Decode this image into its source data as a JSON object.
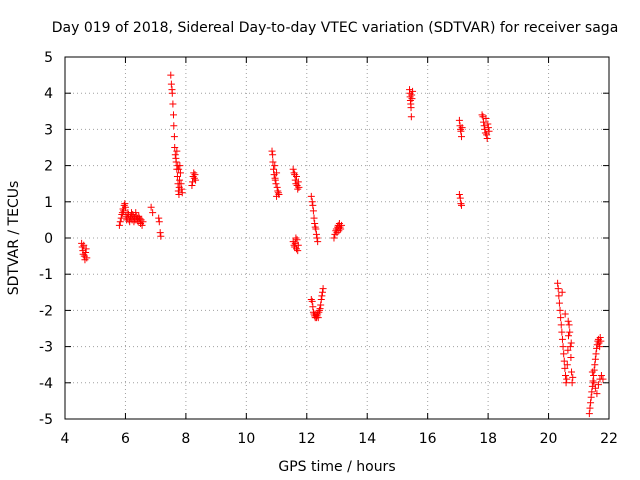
{
  "chart_data": {
    "type": "scatter",
    "title": "Day 019 of 2018, Sidereal Day-to-day VTEC variation (SDTVAR) for receiver saga",
    "xlabel": "GPS time / hours",
    "ylabel": "SDTVAR / TECUs",
    "xlim": [
      4,
      22
    ],
    "ylim": [
      -5,
      5
    ],
    "xticks": [
      4,
      6,
      8,
      10,
      12,
      14,
      16,
      18,
      20,
      22
    ],
    "yticks": [
      -5,
      -4,
      -3,
      -2,
      -1,
      0,
      1,
      2,
      3,
      4,
      5
    ],
    "grid": true,
    "marker": "+",
    "color": "#ff0000",
    "series": [
      {
        "name": "SDTVAR",
        "points": [
          [
            4.55,
            -0.15
          ],
          [
            4.57,
            -0.25
          ],
          [
            4.59,
            -0.35
          ],
          [
            4.6,
            -0.45
          ],
          [
            4.62,
            -0.2
          ],
          [
            4.64,
            -0.5
          ],
          [
            4.66,
            -0.6
          ],
          [
            4.68,
            -0.4
          ],
          [
            4.7,
            -0.3
          ],
          [
            4.72,
            -0.55
          ],
          [
            5.8,
            0.35
          ],
          [
            5.83,
            0.45
          ],
          [
            5.86,
            0.55
          ],
          [
            5.88,
            0.65
          ],
          [
            5.9,
            0.7
          ],
          [
            5.92,
            0.8
          ],
          [
            5.94,
            0.75
          ],
          [
            5.96,
            0.9
          ],
          [
            5.98,
            0.95
          ],
          [
            6.0,
            0.85
          ],
          [
            6.02,
            0.6
          ],
          [
            6.04,
            0.5
          ],
          [
            6.06,
            0.55
          ],
          [
            6.08,
            0.7
          ],
          [
            6.1,
            0.65
          ],
          [
            6.12,
            0.5
          ],
          [
            6.14,
            0.45
          ],
          [
            6.16,
            0.6
          ],
          [
            6.18,
            0.55
          ],
          [
            6.2,
            0.7
          ],
          [
            6.22,
            0.5
          ],
          [
            6.24,
            0.65
          ],
          [
            6.26,
            0.6
          ],
          [
            6.28,
            0.45
          ],
          [
            6.3,
            0.55
          ],
          [
            6.32,
            0.5
          ],
          [
            6.34,
            0.7
          ],
          [
            6.36,
            0.6
          ],
          [
            6.38,
            0.5
          ],
          [
            6.4,
            0.55
          ],
          [
            6.42,
            0.45
          ],
          [
            6.44,
            0.6
          ],
          [
            6.46,
            0.55
          ],
          [
            6.48,
            0.5
          ],
          [
            6.5,
            0.4
          ],
          [
            6.52,
            0.5
          ],
          [
            6.55,
            0.35
          ],
          [
            6.58,
            0.45
          ],
          [
            6.85,
            0.85
          ],
          [
            6.9,
            0.7
          ],
          [
            7.1,
            0.55
          ],
          [
            7.12,
            0.45
          ],
          [
            7.15,
            0.15
          ],
          [
            7.17,
            0.05
          ],
          [
            7.5,
            4.5
          ],
          [
            7.52,
            4.25
          ],
          [
            7.54,
            4.1
          ],
          [
            7.55,
            4.0
          ],
          [
            7.57,
            3.7
          ],
          [
            7.59,
            3.4
          ],
          [
            7.6,
            3.1
          ],
          [
            7.62,
            2.8
          ],
          [
            7.63,
            2.5
          ],
          [
            7.65,
            2.3
          ],
          [
            7.67,
            2.2
          ],
          [
            7.68,
            2.1
          ],
          [
            7.7,
            1.9
          ],
          [
            7.72,
            1.7
          ],
          [
            7.74,
            1.5
          ],
          [
            7.75,
            1.3
          ],
          [
            7.77,
            1.2
          ],
          [
            7.78,
            1.4
          ],
          [
            7.8,
            2.0
          ],
          [
            7.82,
            1.8
          ],
          [
            7.84,
            1.5
          ],
          [
            7.86,
            1.35
          ],
          [
            7.88,
            1.25
          ],
          [
            7.7,
            2.4
          ],
          [
            7.73,
            2.0
          ],
          [
            7.76,
            1.9
          ],
          [
            7.79,
            1.6
          ],
          [
            8.2,
            1.45
          ],
          [
            8.22,
            1.55
          ],
          [
            8.24,
            1.7
          ],
          [
            8.26,
            1.8
          ],
          [
            8.28,
            1.65
          ],
          [
            8.3,
            1.75
          ],
          [
            8.32,
            1.6
          ],
          [
            10.85,
            2.4
          ],
          [
            10.87,
            2.3
          ],
          [
            10.88,
            2.1
          ],
          [
            10.9,
            1.9
          ],
          [
            10.92,
            1.75
          ],
          [
            10.94,
            2.0
          ],
          [
            10.96,
            1.6
          ],
          [
            10.98,
            1.5
          ],
          [
            11.0,
            1.8
          ],
          [
            11.02,
            1.4
          ],
          [
            11.04,
            1.3
          ],
          [
            11.06,
            1.25
          ],
          [
            11.08,
            1.2
          ],
          [
            11.0,
            1.15
          ],
          [
            10.95,
            1.65
          ],
          [
            11.55,
            1.9
          ],
          [
            11.58,
            1.8
          ],
          [
            11.6,
            1.75
          ],
          [
            11.62,
            1.6
          ],
          [
            11.64,
            1.5
          ],
          [
            11.66,
            1.7
          ],
          [
            11.68,
            1.45
          ],
          [
            11.7,
            1.35
          ],
          [
            11.72,
            1.55
          ],
          [
            11.74,
            1.4
          ],
          [
            11.55,
            -0.1
          ],
          [
            11.58,
            -0.2
          ],
          [
            11.6,
            -0.25
          ],
          [
            11.62,
            -0.15
          ],
          [
            11.64,
            0.0
          ],
          [
            11.66,
            -0.3
          ],
          [
            11.68,
            -0.05
          ],
          [
            11.7,
            -0.35
          ],
          [
            11.72,
            -0.2
          ],
          [
            12.15,
            1.15
          ],
          [
            12.18,
            1.0
          ],
          [
            12.2,
            0.9
          ],
          [
            12.22,
            0.75
          ],
          [
            12.24,
            0.55
          ],
          [
            12.26,
            0.4
          ],
          [
            12.28,
            0.3
          ],
          [
            12.3,
            0.25
          ],
          [
            12.32,
            0.1
          ],
          [
            12.34,
            0.0
          ],
          [
            12.36,
            -0.1
          ],
          [
            12.15,
            -1.7
          ],
          [
            12.18,
            -1.75
          ],
          [
            12.2,
            -1.9
          ],
          [
            12.22,
            -2.05
          ],
          [
            12.24,
            -2.1
          ],
          [
            12.26,
            -2.15
          ],
          [
            12.28,
            -2.2
          ],
          [
            12.3,
            -2.1
          ],
          [
            12.32,
            -2.2
          ],
          [
            12.34,
            -2.15
          ],
          [
            12.36,
            -2.1
          ],
          [
            12.38,
            -2.2
          ],
          [
            12.4,
            -2.05
          ],
          [
            12.42,
            -2.0
          ],
          [
            12.44,
            -1.95
          ],
          [
            12.46,
            -1.85
          ],
          [
            12.48,
            -1.7
          ],
          [
            12.5,
            -1.6
          ],
          [
            12.52,
            -1.5
          ],
          [
            12.54,
            -1.4
          ],
          [
            12.9,
            0.0
          ],
          [
            12.93,
            0.1
          ],
          [
            12.96,
            0.2
          ],
          [
            12.98,
            0.25
          ],
          [
            13.0,
            0.15
          ],
          [
            13.02,
            0.3
          ],
          [
            13.04,
            0.35
          ],
          [
            13.06,
            0.2
          ],
          [
            13.08,
            0.4
          ],
          [
            13.1,
            0.3
          ],
          [
            13.12,
            0.25
          ],
          [
            13.15,
            0.35
          ],
          [
            15.4,
            4.1
          ],
          [
            15.41,
            4.0
          ],
          [
            15.42,
            3.9
          ],
          [
            15.43,
            3.8
          ],
          [
            15.44,
            3.7
          ],
          [
            15.45,
            3.6
          ],
          [
            15.46,
            3.35
          ],
          [
            15.47,
            3.95
          ],
          [
            15.48,
            3.85
          ],
          [
            15.5,
            4.05
          ],
          [
            17.05,
            3.25
          ],
          [
            17.07,
            3.1
          ],
          [
            17.09,
            3.0
          ],
          [
            17.1,
            2.95
          ],
          [
            17.12,
            2.8
          ],
          [
            17.14,
            3.05
          ],
          [
            17.05,
            1.2
          ],
          [
            17.08,
            1.1
          ],
          [
            17.1,
            0.95
          ],
          [
            17.12,
            0.9
          ],
          [
            17.8,
            3.4
          ],
          [
            17.83,
            3.35
          ],
          [
            17.85,
            3.2
          ],
          [
            17.87,
            3.1
          ],
          [
            17.89,
            3.0
          ],
          [
            17.91,
            2.9
          ],
          [
            17.93,
            3.3
          ],
          [
            17.95,
            2.85
          ],
          [
            17.97,
            2.75
          ],
          [
            17.99,
            3.15
          ],
          [
            18.01,
            3.05
          ],
          [
            18.03,
            2.95
          ],
          [
            20.3,
            -1.25
          ],
          [
            20.32,
            -1.4
          ],
          [
            20.34,
            -1.6
          ],
          [
            20.36,
            -1.8
          ],
          [
            20.38,
            -2.0
          ],
          [
            20.4,
            -2.2
          ],
          [
            20.42,
            -2.4
          ],
          [
            20.44,
            -2.6
          ],
          [
            20.46,
            -2.8
          ],
          [
            20.48,
            -3.0
          ],
          [
            20.5,
            -3.2
          ],
          [
            20.52,
            -3.4
          ],
          [
            20.54,
            -3.6
          ],
          [
            20.56,
            -3.8
          ],
          [
            20.58,
            -4.0
          ],
          [
            20.6,
            -3.9
          ],
          [
            20.62,
            -3.5
          ],
          [
            20.64,
            -3.1
          ],
          [
            20.66,
            -2.7
          ],
          [
            20.68,
            -2.4
          ],
          [
            20.7,
            -2.6
          ],
          [
            20.72,
            -3.0
          ],
          [
            20.74,
            -3.3
          ],
          [
            20.76,
            -3.7
          ],
          [
            20.78,
            -4.0
          ],
          [
            20.8,
            -3.85
          ],
          [
            20.45,
            -1.5
          ],
          [
            20.55,
            -2.1
          ],
          [
            20.65,
            -2.3
          ],
          [
            20.75,
            -2.9
          ],
          [
            21.35,
            -4.85
          ],
          [
            21.37,
            -4.7
          ],
          [
            21.39,
            -4.55
          ],
          [
            21.41,
            -4.4
          ],
          [
            21.43,
            -4.25
          ],
          [
            21.45,
            -4.1
          ],
          [
            21.47,
            -3.95
          ],
          [
            21.49,
            -3.8
          ],
          [
            21.51,
            -3.65
          ],
          [
            21.53,
            -3.5
          ],
          [
            21.55,
            -3.35
          ],
          [
            21.57,
            -3.2
          ],
          [
            21.59,
            -3.05
          ],
          [
            21.61,
            -2.95
          ],
          [
            21.63,
            -2.85
          ],
          [
            21.65,
            -2.8
          ],
          [
            21.67,
            -2.9
          ],
          [
            21.69,
            -3.0
          ],
          [
            21.71,
            -2.75
          ],
          [
            21.73,
            -2.85
          ],
          [
            21.45,
            -3.7
          ],
          [
            21.5,
            -4.0
          ],
          [
            21.55,
            -4.15
          ],
          [
            21.6,
            -4.3
          ],
          [
            21.65,
            -4.05
          ],
          [
            21.7,
            -3.9
          ],
          [
            21.75,
            -3.8
          ],
          [
            21.8,
            -3.9
          ]
        ]
      }
    ]
  }
}
